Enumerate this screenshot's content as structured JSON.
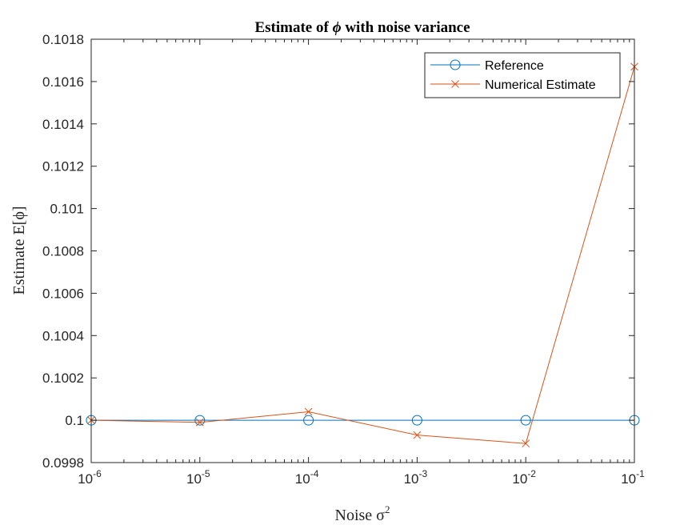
{
  "chart_data": {
    "type": "line",
    "title_prefix": "Estimate of ",
    "title_symbol": "ϕ",
    "title_suffix": " with noise variance",
    "xlabel": "Noise σ",
    "xlabel_sup": "2",
    "ylabel": "Estimate E[ϕ]",
    "x_scale": "log",
    "x": [
      1e-06,
      1e-05,
      0.0001,
      0.001,
      0.01,
      0.1
    ],
    "xlim": [
      1e-06,
      0.1
    ],
    "ylim": [
      0.0998,
      0.1018
    ],
    "x_ticks": [
      {
        "base": "10",
        "exp": "-6"
      },
      {
        "base": "10",
        "exp": "-5"
      },
      {
        "base": "10",
        "exp": "-4"
      },
      {
        "base": "10",
        "exp": "-3"
      },
      {
        "base": "10",
        "exp": "-2"
      },
      {
        "base": "10",
        "exp": "-1"
      }
    ],
    "y_ticks": [
      0.0998,
      0.1,
      0.1002,
      0.1004,
      0.1006,
      0.1008,
      0.101,
      0.1012,
      0.1014,
      0.1016,
      0.1018
    ],
    "y_tick_labels": [
      "0.0998",
      "0.1",
      "0.1002",
      "0.1004",
      "0.1006",
      "0.1008",
      "0.101",
      "0.1012",
      "0.1014",
      "0.1016",
      "0.1018"
    ],
    "grid": false,
    "legend_position": "top-right",
    "series": [
      {
        "name": "Reference",
        "color": "#0072BD",
        "marker": "circle",
        "values": [
          0.1,
          0.1,
          0.1,
          0.1,
          0.1,
          0.1
        ]
      },
      {
        "name": "Numerical Estimate",
        "color": "#D95319",
        "marker": "x",
        "values": [
          0.1,
          0.09999,
          0.10004,
          0.09993,
          0.09989,
          0.10167
        ]
      }
    ]
  }
}
